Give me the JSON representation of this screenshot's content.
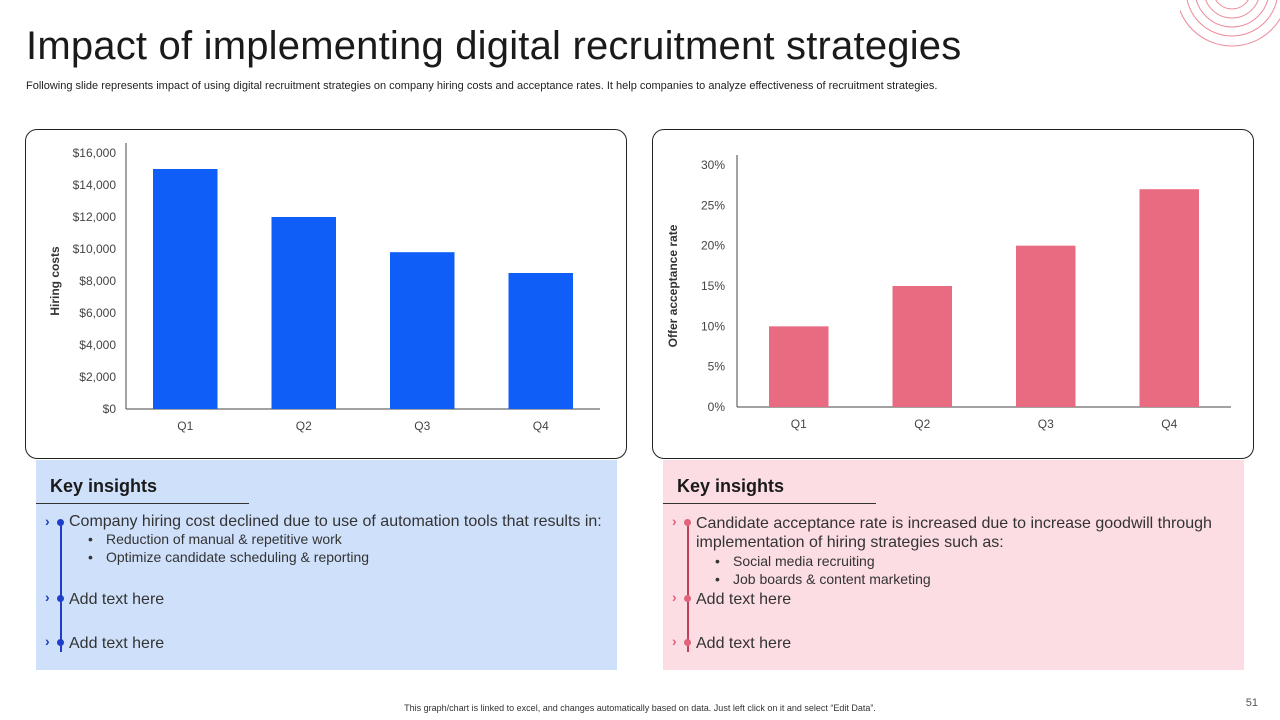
{
  "slide": {
    "title": "Impact of implementing digital recruitment strategies",
    "subtitle": "Following slide represents impact of using digital recruitment strategies on company hiring costs and acceptance rates. It help companies to analyze effectiveness of recruitment strategies.",
    "footer": "This graph/chart is linked to excel, and changes automatically based on data. Just left click on it and select “Edit Data”.",
    "page_number": "51"
  },
  "chart_data": [
    {
      "type": "bar",
      "categories": [
        "Q1",
        "Q2",
        "Q3",
        "Q4"
      ],
      "values": [
        15000,
        12000,
        9800,
        8500
      ],
      "ylabel": "Hiring costs",
      "ylim": [
        0,
        16000
      ],
      "yticks": [
        0,
        2000,
        4000,
        6000,
        8000,
        10000,
        12000,
        14000,
        16000
      ],
      "ytick_labels": [
        "$0",
        "$2,000",
        "$4,000",
        "$6,000",
        "$8,000",
        "$10,000",
        "$12,000",
        "$14,000",
        "$16,000"
      ],
      "color": "#0f5ef7",
      "grid": false
    },
    {
      "type": "bar",
      "categories": [
        "Q1",
        "Q2",
        "Q3",
        "Q4"
      ],
      "values": [
        10,
        15,
        20,
        27
      ],
      "ylabel": "Offer acceptance rate",
      "ylim": [
        0,
        30
      ],
      "yticks": [
        0,
        5,
        10,
        15,
        20,
        25,
        30
      ],
      "ytick_labels": [
        "0%",
        "5%",
        "10%",
        "15%",
        "20%",
        "25%",
        "30%"
      ],
      "color": "#e96b82",
      "grid": false
    }
  ],
  "insights": {
    "left": {
      "title": "Key insights",
      "item1": "Company hiring cost declined due to use of automation tools that results in:",
      "sub": [
        "Reduction of manual & repetitive work",
        "Optimize candidate scheduling & reporting"
      ],
      "item2": "Add text here",
      "item3": "Add text here"
    },
    "right": {
      "title": "Key insights",
      "item1_line1": "Candidate acceptance rate is increased due to increase goodwill through",
      "item1_line2": "implementation of hiring strategies such as:",
      "sub": [
        "Social media recruiting",
        "Job boards & content marketing"
      ],
      "item2": "Add text here",
      "item3": "Add text here"
    }
  }
}
